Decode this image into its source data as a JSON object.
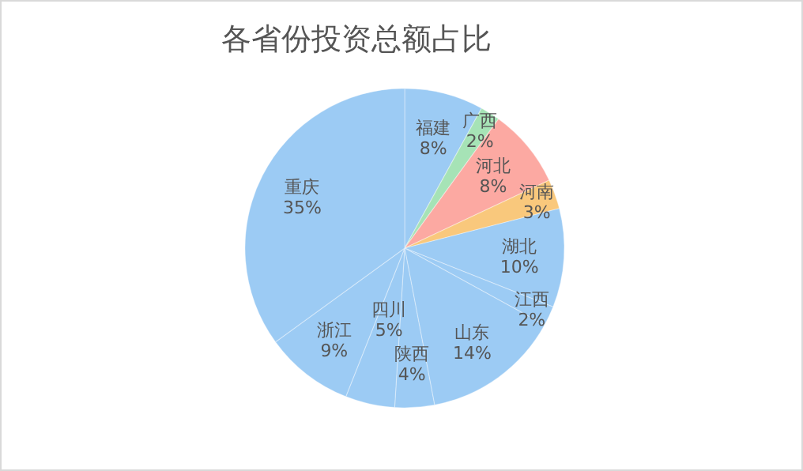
{
  "chart_data": {
    "type": "pie",
    "title": "各省份投资总额占比",
    "categories": [
      "福建",
      "广西",
      "河北",
      "河南",
      "湖北",
      "江西",
      "山东",
      "陕西",
      "四川",
      "浙江",
      "重庆"
    ],
    "values": [
      8,
      2,
      8,
      3,
      10,
      2,
      14,
      4,
      5,
      9,
      35
    ],
    "colors": [
      "#9ccbf4",
      "#a6e3b6",
      "#fca9a2",
      "#f9c87c",
      "#9ccbf4",
      "#9ccbf4",
      "#9ccbf4",
      "#9ccbf4",
      "#9ccbf4",
      "#9ccbf4",
      "#9ccbf4"
    ],
    "value_labels": [
      "8%",
      "2%",
      "8%",
      "3%",
      "10%",
      "2%",
      "14%",
      "4%",
      "5%",
      "9%",
      "35%"
    ],
    "data_labels": true
  }
}
